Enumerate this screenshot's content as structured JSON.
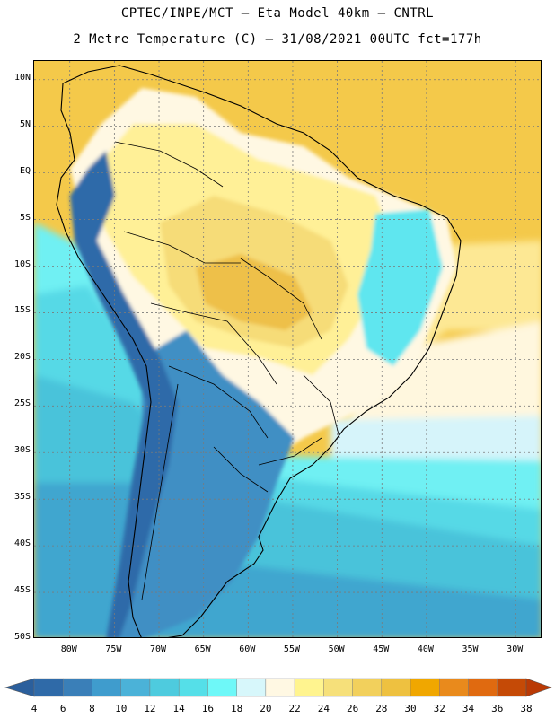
{
  "title": {
    "line1": "CPTEC/INPE/MCT – Eta Model 40km – CNTRL",
    "line2": "2 Metre Temperature (C) – 31/08/2021 00UTC fct=177h"
  },
  "axes": {
    "lat_labels": [
      "10N",
      "5N",
      "EQ",
      "5S",
      "10S",
      "15S",
      "20S",
      "25S",
      "30S",
      "35S",
      "40S",
      "45S",
      "50S"
    ],
    "lon_labels": [
      "80W",
      "75W",
      "70W",
      "65W",
      "60W",
      "55W",
      "50W",
      "45W",
      "40W",
      "35W",
      "30W"
    ],
    "lat_range": [
      12,
      -50
    ],
    "lon_range": [
      -84,
      -27
    ]
  },
  "colorbar": {
    "ticks": [
      "4",
      "6",
      "8",
      "10",
      "12",
      "14",
      "16",
      "18",
      "20",
      "22",
      "24",
      "26",
      "28",
      "30",
      "32",
      "34",
      "36",
      "38"
    ],
    "colors": [
      "#2f6aa8",
      "#3a7fb8",
      "#3f9ccd",
      "#4bb2d8",
      "#4ecbde",
      "#55dfe8",
      "#6ef8f8",
      "#d7f7fb",
      "#fff8e3",
      "#fff48f",
      "#f6e07a",
      "#f2d05c",
      "#eec140",
      "#f0a700",
      "#e98a1c",
      "#e06a10",
      "#c54a06"
    ],
    "end_low_color": "#2b5f9c",
    "end_high_color": "#ba3a05"
  },
  "map_colors": {
    "ocean_far": "#f4c94a",
    "ocean_warm": "#f0cb55",
    "ocean_mid": "#fde894",
    "ocean_cool": "#fff7de",
    "ocean_18": "#d6f4fa",
    "ocean_16": "#6ff0f3",
    "ocean_14": "#56d9e6",
    "ocean_12": "#4ac3da",
    "ocean_10": "#3fa6cf",
    "land_hot": "#eec04a",
    "land_warm": "#f6dc78",
    "land_mild": "#fff097",
    "land_cream": "#fff8e3",
    "land_cool": "#5ee6ef",
    "andes_cold": "#2e6aa9",
    "patagonia": "#3f8fc4"
  }
}
